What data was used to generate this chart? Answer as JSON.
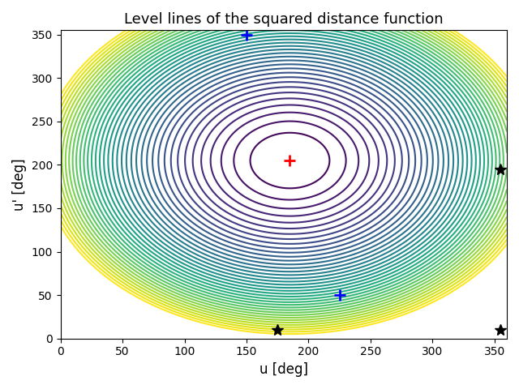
{
  "title": "Level lines of the squared distance function",
  "xlabel": "u [deg]",
  "ylabel": "u' [deg]",
  "xlim": [
    0,
    360
  ],
  "ylim": [
    0,
    355
  ],
  "yticks": [
    0,
    50,
    100,
    150,
    200,
    250,
    300,
    350
  ],
  "xticks": [
    0,
    50,
    100,
    150,
    200,
    250,
    300,
    350
  ],
  "u0": 185,
  "v0": 205,
  "red_plus": [
    185,
    205
  ],
  "blue_plus_1": [
    150,
    350
  ],
  "blue_plus_2": [
    225,
    50
  ],
  "black_star_1": [
    175,
    10
  ],
  "black_star_2": [
    355,
    10
  ],
  "black_star_3": [
    355,
    195
  ],
  "n_levels": 40,
  "colormap": "viridis",
  "figsize": [
    6.4,
    4.8
  ],
  "dpi": 100,
  "title_fontsize": 13
}
